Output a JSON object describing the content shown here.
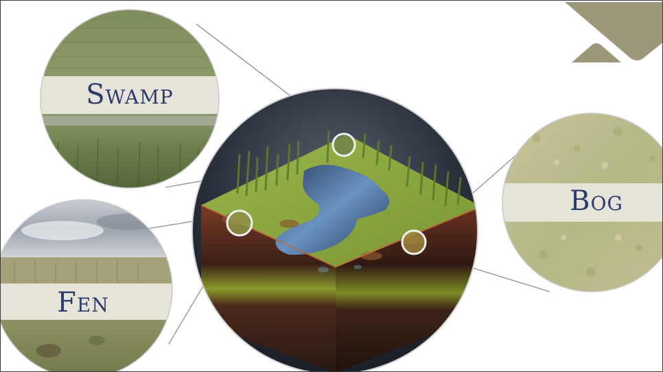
{
  "labels": {
    "swamp": "Swamp",
    "fen": "Fen",
    "bog": "Bog"
  },
  "colors": {
    "label_text": "#2c3a6e",
    "label_band": "#e6e3d8",
    "logo_shape": "#9c987a",
    "connector_line": "#8f8f8f",
    "center_background": "#1f2530",
    "water": "#4f7aa8",
    "moss": "#8cab3d",
    "soil": "#6e3a22"
  },
  "icons": {
    "logo": "diamond-logo-icon",
    "marker": "magnifier-ring-icon"
  }
}
